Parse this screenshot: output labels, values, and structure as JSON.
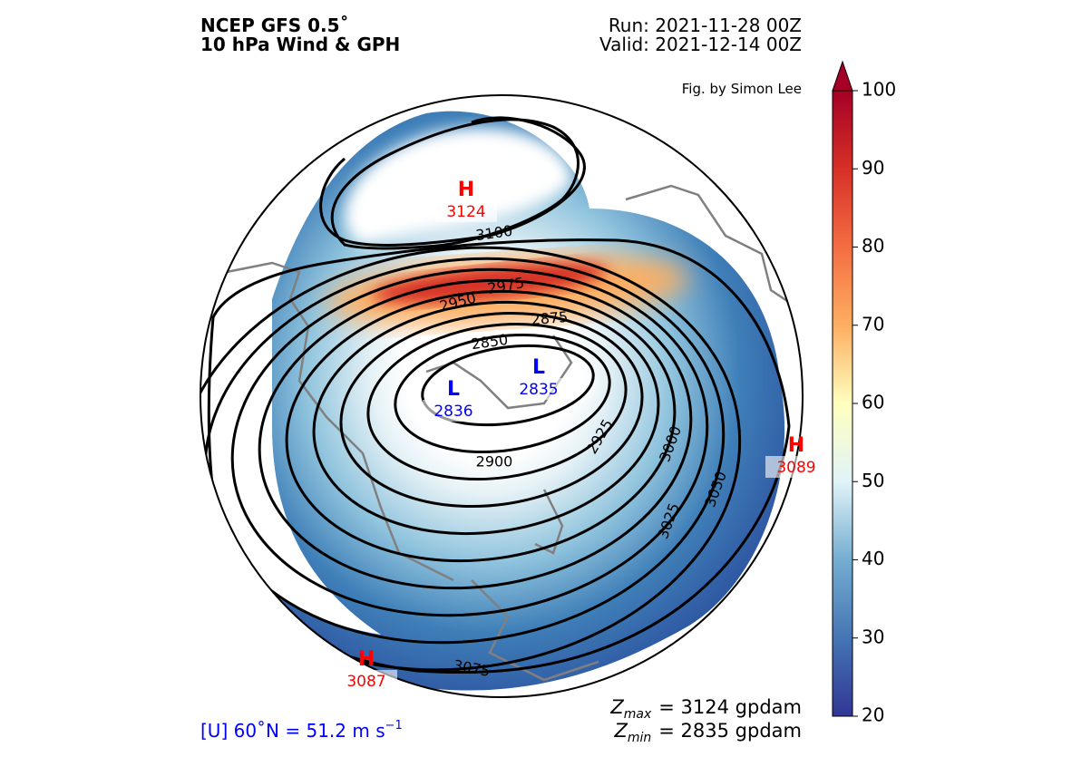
{
  "header": {
    "title": "NCEP GFS 0.5˚",
    "subtitle": "10 hPa Wind & GPH",
    "run": "Run: 2021-11-28 00Z",
    "valid": "Valid: 2021-12-14 00Z",
    "credit": "Fig. by Simon Lee"
  },
  "centers": [
    {
      "label": "H",
      "value": 3124
    },
    {
      "label": "L",
      "value": 2835
    },
    {
      "label": "L",
      "value": 2836
    },
    {
      "label": "H",
      "value": 3089
    },
    {
      "label": "H",
      "value": 3087
    }
  ],
  "contour_labels": [
    3100,
    2950,
    2975,
    2875,
    2850,
    2925,
    2900,
    3000,
    3025,
    3050,
    3075
  ],
  "colorbar": {
    "lim": [
      20,
      100
    ],
    "ticks": [
      20,
      30,
      40,
      50,
      60,
      70,
      80,
      90,
      100
    ]
  },
  "stats": {
    "zmax": {
      "symbol": "Z",
      "sub": "max",
      "text": "= 3124 gpdam"
    },
    "zmin": {
      "symbol": "Z",
      "sub": "min",
      "text": "= 2835 gpdam"
    },
    "wind": {
      "text": "[U] 60˚N = 51.2 m s",
      "sup": "−1"
    }
  }
}
